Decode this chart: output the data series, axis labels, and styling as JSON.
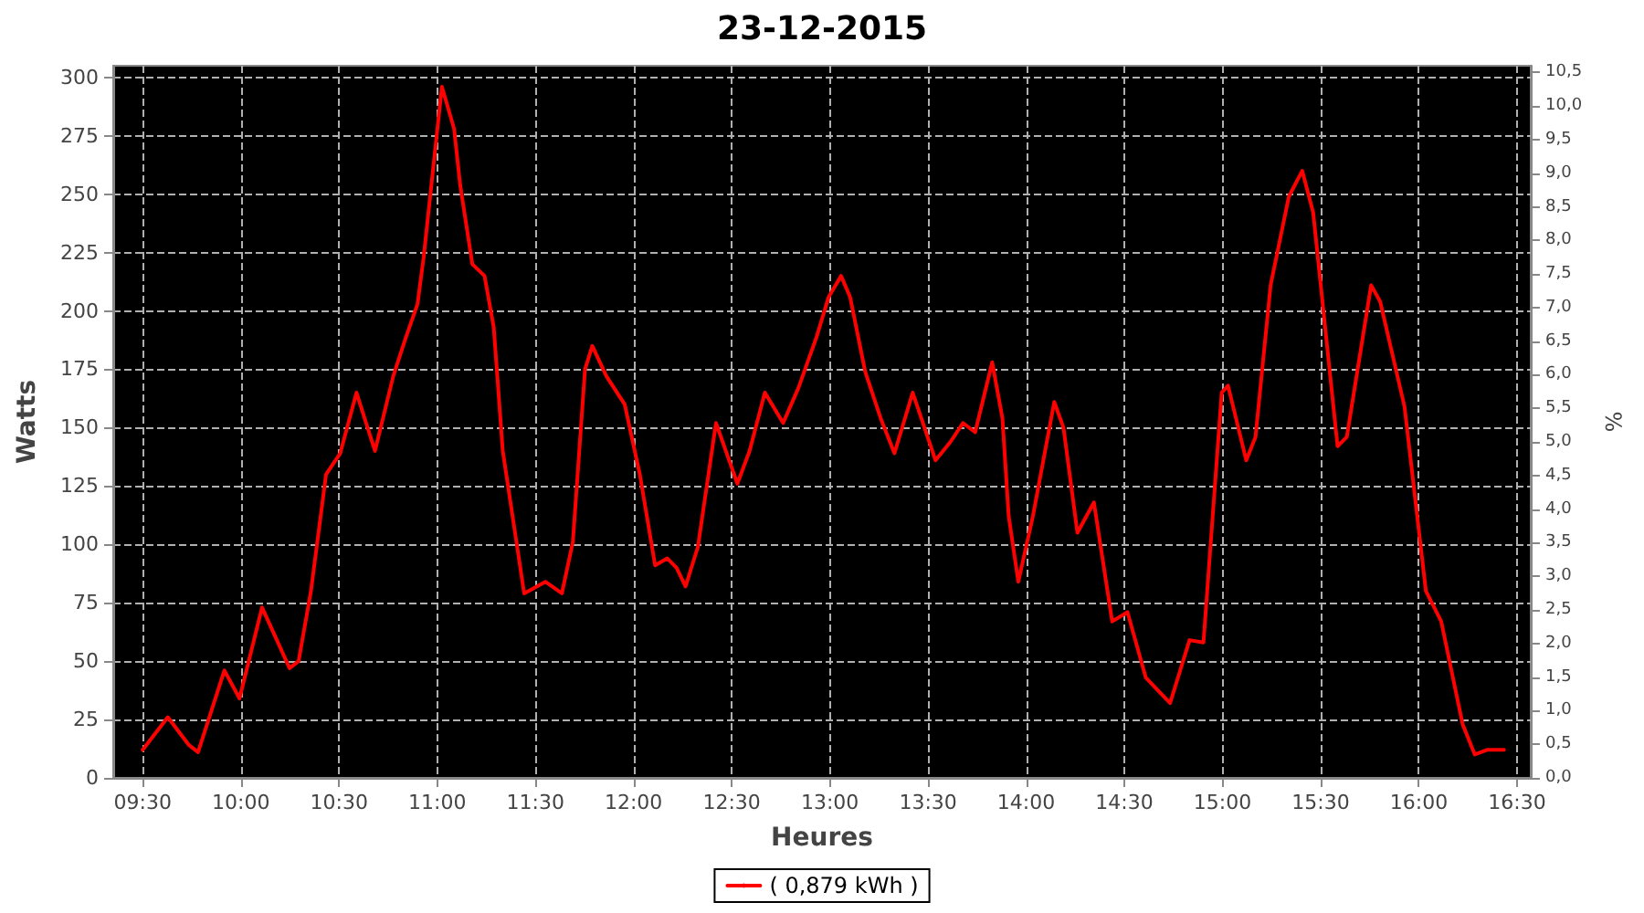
{
  "chart_data": {
    "type": "line",
    "title": "23-12-2015",
    "xlabel": "Heures",
    "ylabel": "Watts",
    "y2label": "%",
    "series": [
      {
        "name": "( 0,879 kWh )",
        "color": "#ff0000",
        "x": [
          9.5,
          9.628,
          9.736,
          9.782,
          9.916,
          9.993,
          10.108,
          10.248,
          10.294,
          10.357,
          10.434,
          10.506,
          10.589,
          10.683,
          10.776,
          10.838,
          10.9,
          10.931,
          11.024,
          11.086,
          11.117,
          11.179,
          11.241,
          11.288,
          11.334,
          11.443,
          11.551,
          11.635,
          11.691,
          11.753,
          11.79,
          11.862,
          11.955,
          12.032,
          12.11,
          12.172,
          12.219,
          12.265,
          12.328,
          12.42,
          12.529,
          12.591,
          12.669,
          12.762,
          12.84,
          12.933,
          12.994,
          13.057,
          13.103,
          13.18,
          13.259,
          13.329,
          13.422,
          13.466,
          13.538,
          13.615,
          13.678,
          13.74,
          13.827,
          13.879,
          13.911,
          13.96,
          14.034,
          14.143,
          14.19,
          14.261,
          14.345,
          14.438,
          14.516,
          14.609,
          14.733,
          14.832,
          14.903,
          14.996,
          15.028,
          15.121,
          15.168,
          15.245,
          15.338,
          15.406,
          15.462,
          15.586,
          15.633,
          15.757,
          15.803,
          15.927,
          16.036,
          16.114,
          16.223,
          16.285,
          16.347,
          16.434
        ],
        "values": [
          12,
          26,
          14,
          11,
          46,
          34,
          73,
          47,
          50,
          80,
          130,
          139,
          165,
          140,
          172,
          188,
          203,
          223,
          296,
          278,
          254,
          220,
          215,
          193,
          140,
          79,
          84,
          79,
          101,
          175,
          185,
          172,
          160,
          130,
          91,
          94,
          90,
          82,
          99,
          152,
          126,
          140,
          165,
          152,
          167,
          189,
          206,
          215,
          206,
          174,
          154,
          139,
          165,
          154,
          136,
          144,
          152,
          148,
          178,
          154,
          112,
          84,
          112,
          161,
          150,
          105,
          118,
          67,
          71,
          43,
          32,
          59,
          58,
          165,
          168,
          136,
          146,
          211,
          249,
          260,
          242,
          142,
          146,
          211,
          204,
          159,
          80,
          67,
          23,
          10,
          12,
          12
        ]
      }
    ],
    "xlim": [
      9.35,
      16.57
    ],
    "xticks": [
      {
        "value": 9.5,
        "label": "09:30"
      },
      {
        "value": 10,
        "label": "10:00"
      },
      {
        "value": 10.5,
        "label": "10:30"
      },
      {
        "value": 11,
        "label": "11:00"
      },
      {
        "value": 11.5,
        "label": "11:30"
      },
      {
        "value": 12,
        "label": "12:00"
      },
      {
        "value": 12.5,
        "label": "12:30"
      },
      {
        "value": 13,
        "label": "13:00"
      },
      {
        "value": 13.5,
        "label": "13:30"
      },
      {
        "value": 14,
        "label": "14:00"
      },
      {
        "value": 14.5,
        "label": "14:30"
      },
      {
        "value": 15,
        "label": "15:00"
      },
      {
        "value": 15.5,
        "label": "15:30"
      },
      {
        "value": 16,
        "label": "16:00"
      },
      {
        "value": 16.5,
        "label": "16:30"
      }
    ],
    "ylim": [
      0,
      305
    ],
    "yticks": [
      0,
      25,
      50,
      75,
      100,
      125,
      150,
      175,
      200,
      225,
      250,
      275,
      300
    ],
    "y2lim": [
      0,
      10.6
    ],
    "y2ticks": [
      {
        "value": 0,
        "label": "0,0"
      },
      {
        "value": 0.5,
        "label": "0,5"
      },
      {
        "value": 1,
        "label": "1,0"
      },
      {
        "value": 1.5,
        "label": "1,5"
      },
      {
        "value": 2,
        "label": "2,0"
      },
      {
        "value": 2.5,
        "label": "2,5"
      },
      {
        "value": 3,
        "label": "3,0"
      },
      {
        "value": 3.5,
        "label": "3,5"
      },
      {
        "value": 4,
        "label": "4,0"
      },
      {
        "value": 4.5,
        "label": "4,5"
      },
      {
        "value": 5,
        "label": "5,0"
      },
      {
        "value": 5.5,
        "label": "5,5"
      },
      {
        "value": 6,
        "label": "6,0"
      },
      {
        "value": 6.5,
        "label": "6,5"
      },
      {
        "value": 7,
        "label": "7,0"
      },
      {
        "value": 7.5,
        "label": "7,5"
      },
      {
        "value": 8,
        "label": "8,0"
      },
      {
        "value": 8.5,
        "label": "8,5"
      },
      {
        "value": 9,
        "label": "9,0"
      },
      {
        "value": 9.5,
        "label": "9,5"
      },
      {
        "value": 10,
        "label": "10,0"
      },
      {
        "value": 10.5,
        "label": "10,5"
      }
    ],
    "grid": true,
    "legend": "bottom",
    "marker": "none",
    "line_style": "solid"
  }
}
